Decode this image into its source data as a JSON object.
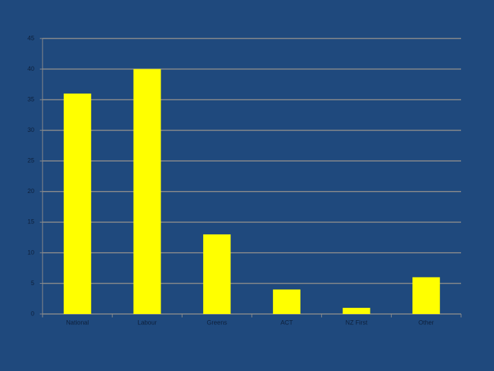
{
  "chart_data": {
    "type": "bar",
    "categories": [
      "National",
      "Labour",
      "Greens",
      "ACT",
      "NZ First",
      "Other"
    ],
    "values": [
      36,
      40,
      13,
      4,
      1,
      6
    ],
    "color": "#ffff00",
    "ylim": [
      0,
      45
    ],
    "yticks": [
      0,
      5,
      10,
      15,
      20,
      25,
      30,
      35,
      40,
      45
    ],
    "grid": true
  }
}
